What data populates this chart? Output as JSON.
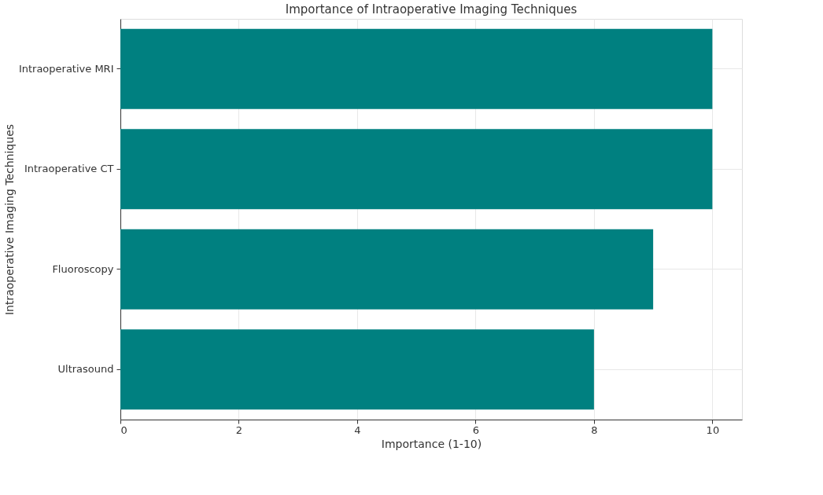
{
  "chart_data": {
    "type": "bar",
    "orientation": "horizontal",
    "title": "Importance of Intraoperative Imaging Techniques",
    "xlabel": "Importance (1-10)",
    "ylabel": "Intraoperative Imaging Techniques",
    "categories": [
      "Intraoperative MRI",
      "Intraoperative CT",
      "Fluoroscopy",
      "Ultrasound"
    ],
    "values": [
      10,
      10,
      9,
      8
    ],
    "color": "#008080",
    "xlim": [
      0,
      10.5
    ],
    "xticks": [
      0,
      2,
      4,
      6,
      8,
      10
    ],
    "grid": true
  }
}
